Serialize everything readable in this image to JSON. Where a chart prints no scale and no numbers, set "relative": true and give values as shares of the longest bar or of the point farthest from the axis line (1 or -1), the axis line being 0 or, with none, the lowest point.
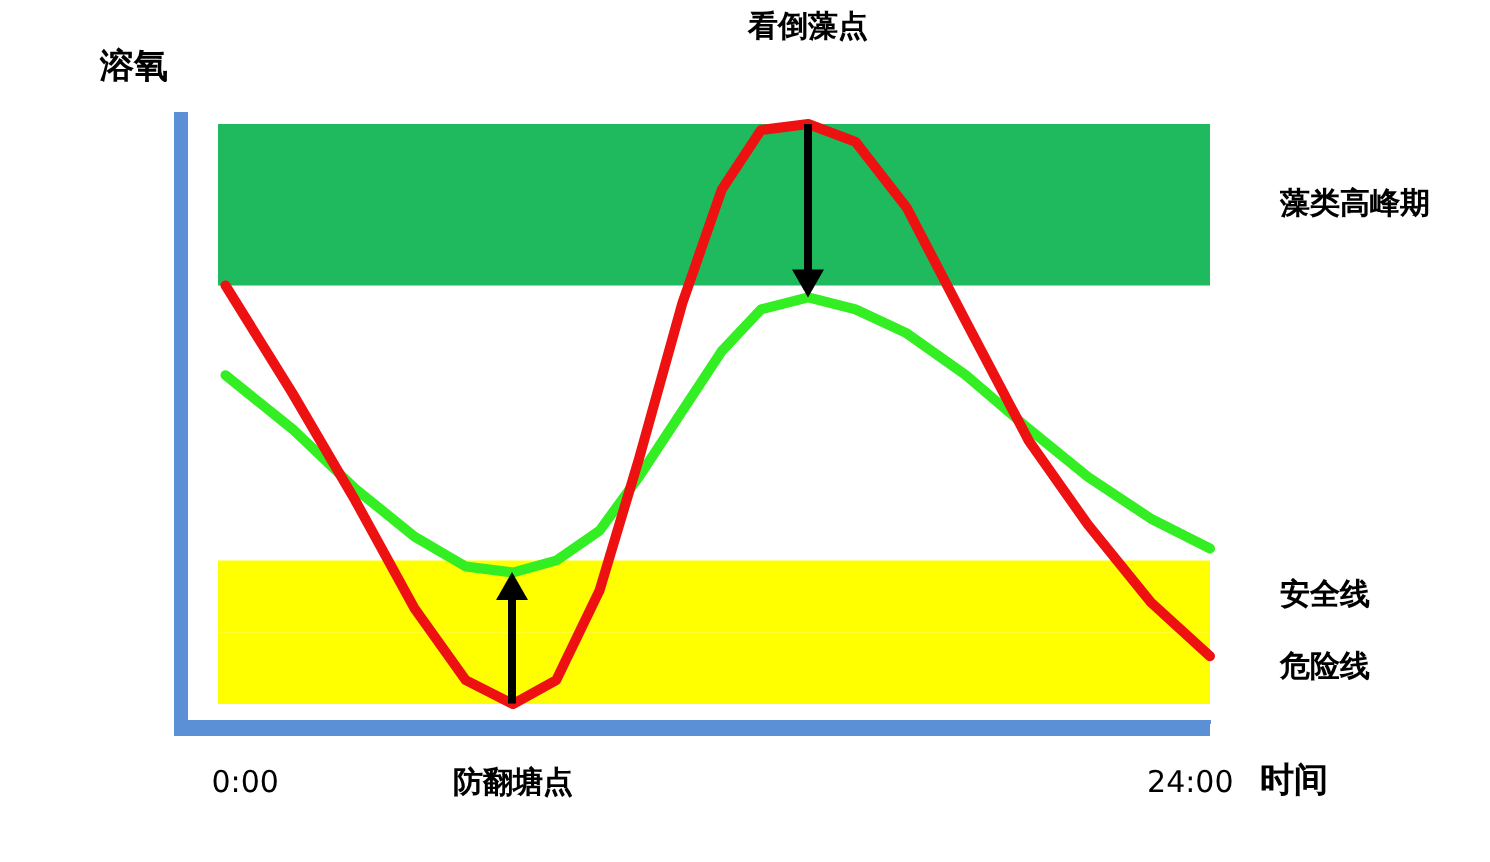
{
  "chart_data": {
    "type": "line",
    "relative": true,
    "ylabel": "溶氧",
    "xlabel": "时间",
    "xlim": [
      -1.4,
      24.5
    ],
    "xticks": [
      {
        "value": 0,
        "label": "0:00"
      },
      {
        "value": 24,
        "label": "24:00"
      }
    ],
    "tick_labels": "x",
    "line_style": "solid",
    "x": [
      -0.5,
      1.2,
      2.8,
      4.3,
      5.6,
      6.8,
      7.9,
      9.0,
      10.0,
      11.1,
      12.1,
      13.1,
      14.3,
      15.5,
      16.8,
      18.3,
      19.9,
      21.4,
      23.0,
      24.5
    ],
    "series": [
      {
        "color": "#ee1111",
        "values": [
          0.73,
          0.55,
          0.37,
          0.19,
          0.07,
          0.03,
          0.07,
          0.22,
          0.44,
          0.7,
          0.89,
          0.99,
          1.0,
          0.97,
          0.86,
          0.67,
          0.47,
          0.33,
          0.2,
          0.11
        ]
      },
      {
        "color": "#33ee22",
        "values": [
          0.58,
          0.49,
          0.39,
          0.31,
          0.26,
          0.25,
          0.27,
          0.32,
          0.41,
          0.52,
          0.62,
          0.69,
          0.71,
          0.69,
          0.65,
          0.58,
          0.49,
          0.41,
          0.34,
          0.29
        ]
      }
    ],
    "bands": [
      {
        "axis": "y",
        "from": 0.73,
        "to": 1.0,
        "label": "藻类高峰期",
        "color": "#1fba5e"
      },
      {
        "axis": "y",
        "from": 0.15,
        "to": 0.27,
        "label": "安全线",
        "color": "#ffff00"
      },
      {
        "axis": "y",
        "from": 0.03,
        "to": 0.15,
        "label": "危险线",
        "color": "#ffff00"
      }
    ],
    "annotations": [
      {
        "text": "看倒藻点",
        "x": 14.3,
        "y": 1.0
      },
      {
        "text": "防翻塘点",
        "x": 6.8,
        "y": 0.03
      }
    ]
  }
}
